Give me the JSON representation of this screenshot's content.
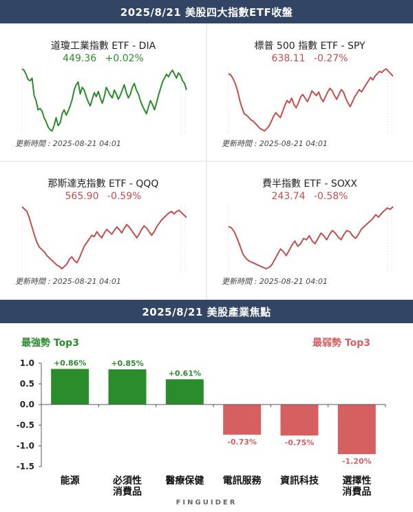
{
  "header_top": "2025/8/21  美股四大指數ETF收盤",
  "header_bottom": "2025/8/21  美股產業焦點",
  "colors": {
    "up": "#2a8c2a",
    "down": "#c94c4c",
    "header_bg": "#324564"
  },
  "panels": [
    {
      "title": "道瓊工業指數 ETF - DIA",
      "price": "449.36",
      "change": "+0.02%",
      "direction": "up",
      "updated": "更新時間 : 2025-08-21 04:01",
      "series": [
        56,
        55,
        52,
        48,
        47,
        49,
        36,
        32,
        25,
        26,
        24,
        19,
        16,
        12,
        10,
        9,
        13,
        19,
        13,
        15,
        22,
        25,
        21,
        24,
        28,
        33,
        40,
        44,
        46,
        37,
        42,
        40,
        35,
        31,
        28,
        33,
        38,
        35,
        39,
        34,
        30,
        35,
        42,
        39,
        36,
        34,
        40,
        37,
        33,
        36,
        40,
        44,
        38,
        34,
        37,
        42,
        45,
        40,
        37,
        32,
        28,
        25,
        22,
        27,
        32,
        29,
        25,
        30,
        36,
        41,
        46,
        49,
        52,
        50,
        53,
        55,
        52,
        49,
        53,
        51,
        47,
        45,
        40
      ]
    },
    {
      "title": "標普 500 指數 ETF - SPY",
      "price": "638.11",
      "change": "-0.27%",
      "direction": "down",
      "updated": "更新時間 : 2025-08-21 04:01",
      "series": [
        58,
        57,
        54,
        50,
        44,
        36,
        30,
        25,
        24,
        22,
        20,
        19,
        17,
        15,
        13,
        12,
        11,
        13,
        15,
        19,
        23,
        26,
        24,
        22,
        27,
        32,
        36,
        34,
        38,
        33,
        30,
        34,
        39,
        41,
        38,
        35,
        39,
        44,
        42,
        40,
        43,
        38,
        35,
        39,
        43,
        46,
        44,
        40,
        37,
        41,
        45,
        43,
        38,
        34,
        31,
        35,
        39,
        42,
        45,
        43,
        46,
        49,
        52,
        55,
        53,
        56,
        58,
        60,
        59,
        61,
        62,
        60,
        58,
        56
      ]
    },
    {
      "title": "那斯達克指數 ETF - QQQ",
      "price": "565.90",
      "change": "-0.59%",
      "direction": "down",
      "updated": "更新時間 : 2025-08-21 04:01",
      "series": [
        62,
        60,
        58,
        52,
        45,
        38,
        32,
        28,
        26,
        24,
        21,
        19,
        17,
        15,
        13,
        12,
        10,
        12,
        14,
        18,
        20,
        17,
        15,
        19,
        24,
        29,
        32,
        35,
        38,
        37,
        41,
        38,
        36,
        40,
        43,
        41,
        39,
        42,
        45,
        43,
        40,
        44,
        47,
        45,
        42,
        39,
        36,
        39,
        43,
        46,
        44,
        41,
        38,
        41,
        45,
        48,
        51,
        53,
        55,
        57,
        58,
        56,
        58,
        59,
        57,
        55,
        53
      ]
    },
    {
      "title": "費半指數 ETF - SOXX",
      "price": "243.74",
      "change": "-0.58%",
      "direction": "down",
      "updated": "更新時間 : 2025-08-21 04:01",
      "series": [
        229,
        228,
        225,
        220,
        214,
        208,
        205,
        203,
        202,
        201,
        200,
        199,
        198,
        197,
        198,
        200,
        204,
        208,
        212,
        210,
        207,
        211,
        215,
        218,
        214,
        216,
        220,
        219,
        222,
        218,
        216,
        220,
        224,
        222,
        219,
        223,
        226,
        224,
        221,
        219,
        223,
        226,
        225,
        222,
        220,
        223,
        227,
        229,
        231,
        233,
        235,
        238,
        236,
        239,
        241,
        243,
        242,
        244
      ]
    }
  ],
  "top3": {
    "best": "最強勢 Top3",
    "worst": "最弱勢 Top3"
  },
  "chart_data": {
    "type": "bar",
    "categories": [
      "能源",
      "必須性\n消費品",
      "醫療保健",
      "電訊服務",
      "資訊科技",
      "選擇性\n消費品"
    ],
    "values": [
      0.86,
      0.85,
      0.61,
      -0.73,
      -0.75,
      -1.2
    ],
    "data_labels": [
      "+0.86%",
      "+0.85%",
      "+0.61%",
      "-0.73%",
      "-0.75%",
      "-1.20%"
    ],
    "ylim": [
      -1.5,
      1.0
    ],
    "yticks": [
      1.0,
      0.5,
      0.0,
      -0.5,
      -1.0,
      -1.5
    ],
    "ytick_labels": [
      "1.0",
      "0.5",
      "0.0",
      "-0.5",
      "-1.0",
      "-1.5"
    ],
    "positive_color": "#2a8c2a",
    "negative_color": "#d65f5f"
  },
  "logo": "FINGUIDER"
}
